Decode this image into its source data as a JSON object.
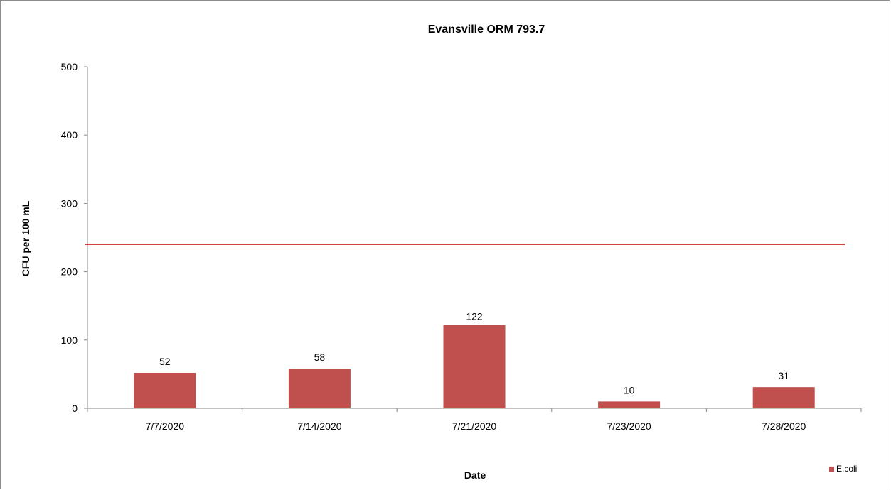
{
  "chart_data": {
    "type": "bar",
    "title": "Evansville ORM 793.7",
    "xlabel": "Date",
    "ylabel": "CFU per 100 mL",
    "categories": [
      "7/7/2020",
      "7/14/2020",
      "7/21/2020",
      "7/23/2020",
      "7/28/2020"
    ],
    "series": [
      {
        "name": "E.coli",
        "values": [
          52,
          58,
          122,
          10,
          31
        ],
        "color": "#c0504d"
      }
    ],
    "data_labels": [
      "52",
      "58",
      "122",
      "10",
      "31"
    ],
    "reference_line": {
      "value": 240,
      "color": "#c00000"
    },
    "ylim": [
      0,
      500
    ],
    "yticks": [
      0,
      100,
      200,
      300,
      400,
      500
    ],
    "grid": false,
    "legend_position": "bottom-right"
  }
}
